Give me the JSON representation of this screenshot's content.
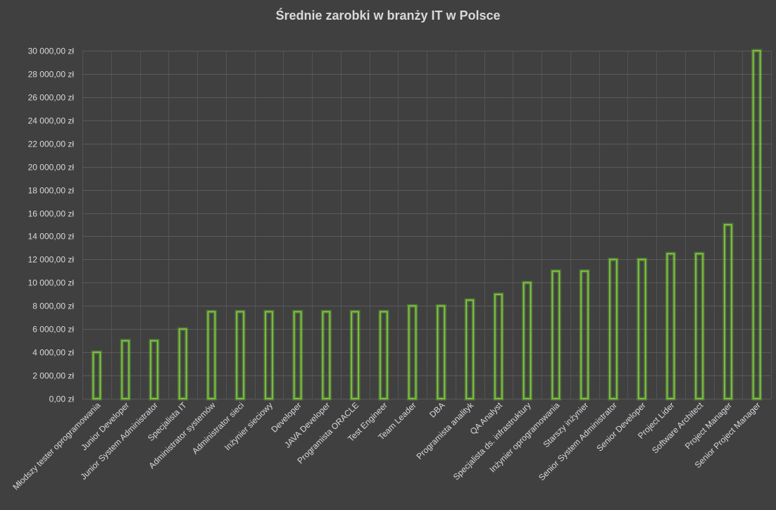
{
  "chart_data": {
    "type": "bar",
    "title": "Średnie zarobki w branży IT w Polsce",
    "xlabel": "",
    "ylabel": "",
    "ylim": [
      0,
      30000
    ],
    "ystep": 2000,
    "y_tick_labels": [
      "0,00 zł",
      "2 000,00 zł",
      "4 000,00 zł",
      "6 000,00 zł",
      "8 000,00 zł",
      "10 000,00 zł",
      "12 000,00 zł",
      "14 000,00 zł",
      "16 000,00 zł",
      "18 000,00 zł",
      "20 000,00 zł",
      "22 000,00 zł",
      "24 000,00 zł",
      "26 000,00 zł",
      "28 000,00 zł",
      "30 000,00 zł"
    ],
    "categories": [
      "Młodszy tester oprogramowania",
      "Junior Developer",
      "Junior System Administrator",
      "Specjalista IT",
      "Administrator systemów",
      "Administrator sieci",
      "Inżynier sieciowy",
      "Developer",
      "JAVA Developer",
      "Programista ORACLE",
      "Test Engineer",
      "Team Leader",
      "DBA",
      "Programista analityk",
      "QA Analyst",
      "Specjalista ds. infrastruktury",
      "Inżynier oprogramowania",
      "Starszy inżynier",
      "Senior System Administrator",
      "Senior Developer",
      "Project Lider",
      "Software Architect",
      "Project Manager",
      "Senior Project Manager"
    ],
    "values": [
      4000,
      5000,
      5000,
      6000,
      7500,
      7500,
      7500,
      7500,
      7500,
      7500,
      7500,
      8000,
      8000,
      8500,
      9000,
      10000,
      11000,
      11000,
      12000,
      12000,
      12500,
      12500,
      15000,
      30000
    ],
    "grid": true,
    "legend": "none",
    "colors": {
      "background": "#404040",
      "bar_outline": "#7ed13b",
      "text": "#d9d9d9",
      "grid": "#5a5a5a"
    }
  }
}
